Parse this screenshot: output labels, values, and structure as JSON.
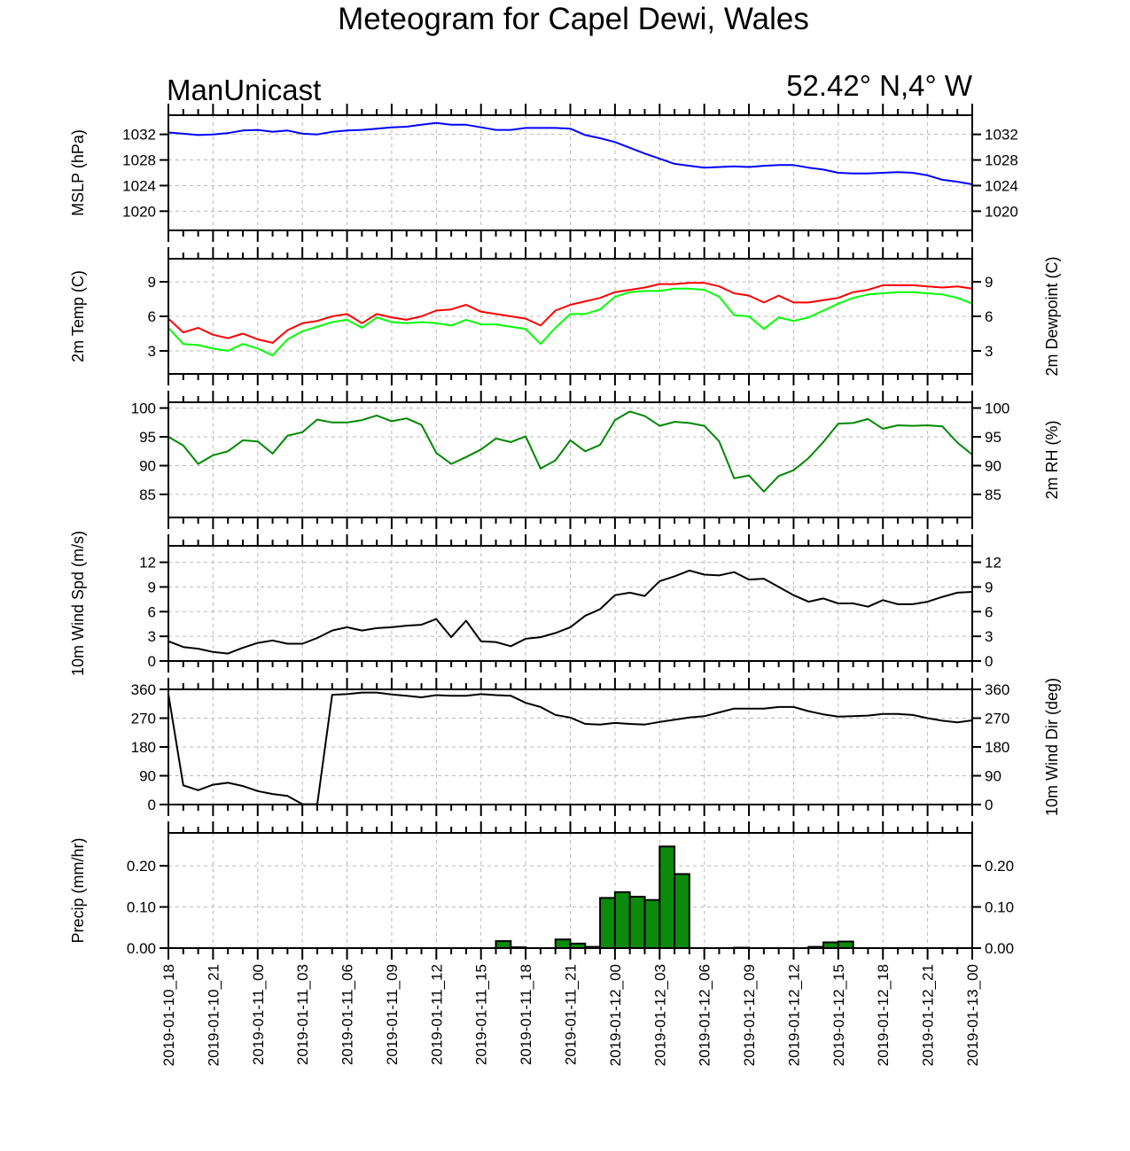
{
  "title": "Meteogram for Capel Dewi, Wales",
  "model": "ManUnicast",
  "location": "52.42° N,4° W",
  "colors": {
    "mslp": "#0000ff",
    "temp": "#ff0000",
    "dewpoint": "#00ff00",
    "rh": "#008800",
    "wind": "#000000",
    "precip_fill": "#0b8a0b",
    "grid": "#b8b8b8"
  },
  "time_labels": [
    "2019-01-10_18",
    "2019-01-10_21",
    "2019-01-11_00",
    "2019-01-11_03",
    "2019-01-11_06",
    "2019-01-11_09",
    "2019-01-11_12",
    "2019-01-11_15",
    "2019-01-11_18",
    "2019-01-11_21",
    "2019-01-12_00",
    "2019-01-12_03",
    "2019-01-12_06",
    "2019-01-12_09",
    "2019-01-12_12",
    "2019-01-12_15",
    "2019-01-12_18",
    "2019-01-12_21",
    "2019-01-13_00"
  ],
  "chart_data": [
    {
      "type": "line",
      "ylabel": "MSLP (hPa)",
      "yticks": [
        1020,
        1024,
        1028,
        1032
      ],
      "ylim": [
        1017,
        1035
      ],
      "grid": true,
      "x": [
        0,
        1,
        2,
        3,
        4,
        5,
        6,
        7,
        8,
        9,
        10,
        11,
        12,
        13,
        14,
        15,
        16,
        17,
        18,
        19,
        20,
        21,
        22,
        23,
        24,
        25,
        26,
        27,
        28,
        29,
        30,
        31,
        32,
        33,
        34,
        35,
        36,
        37,
        38,
        39,
        40,
        41,
        42,
        43,
        44,
        45,
        46,
        47,
        48,
        49,
        50,
        51,
        52,
        53,
        54
      ],
      "series": [
        {
          "name": "MSLP",
          "color_key": "mslp",
          "values": [
            1032.3,
            1032.1,
            1031.9,
            1032.0,
            1032.2,
            1032.6,
            1032.7,
            1032.4,
            1032.6,
            1032.1,
            1032.0,
            1032.4,
            1032.6,
            1032.7,
            1032.9,
            1033.1,
            1033.2,
            1033.5,
            1033.8,
            1033.5,
            1033.5,
            1033.1,
            1032.7,
            1032.7,
            1033.0,
            1033.0,
            1033.0,
            1032.9,
            1031.9,
            1031.4,
            1030.8,
            1029.9,
            1029.0,
            1028.2,
            1027.4,
            1027.1,
            1026.8,
            1026.9,
            1027.0,
            1026.9,
            1027.1,
            1027.2,
            1027.2,
            1026.8,
            1026.5,
            1026.0,
            1025.9,
            1025.9,
            1026.0,
            1026.1,
            1026.0,
            1025.6,
            1024.9,
            1024.6,
            1024.2
          ]
        }
      ],
      "right_labels": true
    },
    {
      "type": "line",
      "ylabel": "2m Temp (C)",
      "ylabel_right": "2m Dewpoint (C)",
      "yticks": [
        3,
        6,
        9
      ],
      "ylim": [
        1,
        11
      ],
      "grid": true,
      "x": [
        0,
        1,
        2,
        3,
        4,
        5,
        6,
        7,
        8,
        9,
        10,
        11,
        12,
        13,
        14,
        15,
        16,
        17,
        18,
        19,
        20,
        21,
        22,
        23,
        24,
        25,
        26,
        27,
        28,
        29,
        30,
        31,
        32,
        33,
        34,
        35,
        36,
        37,
        38,
        39,
        40,
        41,
        42,
        43,
        44,
        45,
        46,
        47,
        48,
        49,
        50,
        51,
        52,
        53,
        54
      ],
      "series": [
        {
          "name": "2m Temp",
          "color_key": "temp",
          "values": [
            5.8,
            4.6,
            5.0,
            4.4,
            4.1,
            4.5,
            4.0,
            3.7,
            4.8,
            5.4,
            5.6,
            6.0,
            6.2,
            5.4,
            6.2,
            5.9,
            5.7,
            6.0,
            6.5,
            6.6,
            7.0,
            6.4,
            6.2,
            6.0,
            5.8,
            5.2,
            6.5,
            7.0,
            7.3,
            7.6,
            8.1,
            8.3,
            8.5,
            8.8,
            8.8,
            8.9,
            8.9,
            8.6,
            8.0,
            7.8,
            7.2,
            7.8,
            7.2,
            7.2,
            7.4,
            7.6,
            8.1,
            8.3,
            8.7,
            8.7,
            8.7,
            8.6,
            8.5,
            8.6,
            8.4
          ]
        },
        {
          "name": "2m Dewpoint",
          "color_key": "dewpoint",
          "values": [
            5.0,
            3.6,
            3.5,
            3.2,
            3.0,
            3.6,
            3.2,
            2.6,
            4.0,
            4.7,
            5.1,
            5.5,
            5.7,
            5.0,
            5.9,
            5.5,
            5.4,
            5.5,
            5.4,
            5.2,
            5.7,
            5.3,
            5.3,
            5.1,
            4.9,
            3.6,
            5.0,
            6.2,
            6.2,
            6.6,
            7.7,
            8.1,
            8.2,
            8.2,
            8.4,
            8.4,
            8.3,
            7.7,
            6.1,
            6.0,
            4.9,
            5.9,
            5.6,
            5.9,
            6.5,
            7.1,
            7.6,
            7.9,
            8.0,
            8.1,
            8.1,
            8.0,
            7.9,
            7.6,
            7.1
          ]
        }
      ],
      "right_labels": true
    },
    {
      "type": "line",
      "ylabel_right": "2m RH (%)",
      "yticks": [
        85,
        90,
        95,
        100
      ],
      "ylim": [
        81,
        101
      ],
      "grid": true,
      "x": [
        0,
        1,
        2,
        3,
        4,
        5,
        6,
        7,
        8,
        9,
        10,
        11,
        12,
        13,
        14,
        15,
        16,
        17,
        18,
        19,
        20,
        21,
        22,
        23,
        24,
        25,
        26,
        27,
        28,
        29,
        30,
        31,
        32,
        33,
        34,
        35,
        36,
        37,
        38,
        39,
        40,
        41,
        42,
        43,
        44,
        45,
        46,
        47,
        48,
        49,
        50,
        51,
        52,
        53,
        54
      ],
      "series": [
        {
          "name": "2m RH",
          "color_key": "rh",
          "values": [
            95.0,
            93.5,
            90.3,
            91.8,
            92.5,
            94.4,
            94.2,
            92.1,
            95.2,
            95.8,
            98.0,
            97.5,
            97.5,
            97.9,
            98.7,
            97.7,
            98.2,
            97.1,
            92.2,
            90.3,
            91.5,
            92.8,
            94.7,
            94.1,
            95.1,
            89.5,
            90.9,
            94.4,
            92.5,
            93.6,
            97.9,
            99.4,
            98.6,
            96.9,
            97.6,
            97.4,
            96.9,
            94.2,
            87.8,
            88.3,
            85.5,
            88.2,
            89.2,
            91.3,
            94.1,
            97.3,
            97.4,
            98.1,
            96.4,
            97.0,
            96.9,
            97.0,
            96.8,
            94.0,
            91.9
          ]
        }
      ],
      "right_labels": true
    },
    {
      "type": "line",
      "ylabel": "10m Wind Spd (m/s)",
      "yticks": [
        0,
        3,
        6,
        9,
        12
      ],
      "ylim": [
        0,
        14
      ],
      "grid": true,
      "x": [
        0,
        1,
        2,
        3,
        4,
        5,
        6,
        7,
        8,
        9,
        10,
        11,
        12,
        13,
        14,
        15,
        16,
        17,
        18,
        19,
        20,
        21,
        22,
        23,
        24,
        25,
        26,
        27,
        28,
        29,
        30,
        31,
        32,
        33,
        34,
        35,
        36,
        37,
        38,
        39,
        40,
        41,
        42,
        43,
        44,
        45,
        46,
        47,
        48,
        49,
        50,
        51,
        52,
        53,
        54
      ],
      "series": [
        {
          "name": "10m Wind Spd",
          "color_key": "wind",
          "values": [
            2.4,
            1.7,
            1.5,
            1.1,
            0.9,
            1.6,
            2.2,
            2.5,
            2.1,
            2.1,
            2.8,
            3.7,
            4.1,
            3.7,
            4.0,
            4.1,
            4.3,
            4.4,
            5.1,
            2.9,
            4.9,
            2.4,
            2.3,
            1.8,
            2.7,
            2.9,
            3.4,
            4.1,
            5.5,
            6.3,
            8.0,
            8.3,
            7.9,
            9.7,
            10.3,
            11.0,
            10.5,
            10.4,
            10.8,
            9.9,
            10.0,
            9.0,
            8.0,
            7.2,
            7.6,
            7.0,
            7.0,
            6.6,
            7.4,
            6.9,
            6.9,
            7.2,
            7.8,
            8.3,
            8.4
          ]
        }
      ],
      "right_labels": true
    },
    {
      "type": "line",
      "ylabel_right": "10m Wind Dir (deg)",
      "yticks": [
        0,
        90,
        180,
        270,
        360
      ],
      "ylim": [
        0,
        360
      ],
      "grid": true,
      "x": [
        0,
        1,
        2,
        3,
        4,
        5,
        6,
        7,
        8,
        9,
        10,
        11,
        12,
        13,
        14,
        15,
        16,
        17,
        18,
        19,
        20,
        21,
        22,
        23,
        24,
        25,
        26,
        27,
        28,
        29,
        30,
        31,
        32,
        33,
        34,
        35,
        36,
        37,
        38,
        39,
        40,
        41,
        42,
        43,
        44,
        45,
        46,
        47,
        48,
        49,
        50,
        51,
        52,
        53,
        54
      ],
      "series": [
        {
          "name": "10m Wind Dir",
          "color_key": "wind",
          "values": [
            345,
            60,
            45,
            62,
            68,
            58,
            42,
            33,
            27,
            1,
            1,
            343,
            345,
            350,
            350,
            344,
            340,
            335,
            342,
            340,
            340,
            345,
            342,
            340,
            318,
            305,
            280,
            272,
            252,
            250,
            255,
            252,
            250,
            258,
            265,
            272,
            276,
            288,
            300,
            300,
            300,
            305,
            305,
            292,
            282,
            275,
            276,
            278,
            283,
            283,
            280,
            270,
            262,
            257,
            263
          ]
        }
      ],
      "right_labels": true
    },
    {
      "type": "bar",
      "ylabel": "Precip (mm/hr)",
      "yticks": [
        0.0,
        0.1,
        0.2
      ],
      "tick_labels": [
        "0.00",
        "0.10",
        "0.20"
      ],
      "ylim": [
        0,
        0.28
      ],
      "grid": true,
      "x": [
        0,
        1,
        2,
        3,
        4,
        5,
        6,
        7,
        8,
        9,
        10,
        11,
        12,
        13,
        14,
        15,
        16,
        17,
        18,
        19,
        20,
        21,
        22,
        23,
        24,
        25,
        26,
        27,
        28,
        29,
        30,
        31,
        32,
        33,
        34,
        35,
        36,
        37,
        38,
        39,
        40,
        41,
        42,
        43,
        44,
        45,
        46,
        47,
        48,
        49,
        50,
        51,
        52,
        53
      ],
      "series": [
        {
          "name": "Precip",
          "color_key": "precip_fill",
          "values": [
            0,
            0,
            0,
            0,
            0,
            0,
            0,
            0,
            0,
            0,
            0,
            0,
            0,
            0,
            0,
            0,
            0,
            0,
            0,
            0,
            0,
            0,
            0.017,
            0.002,
            0,
            0,
            0.021,
            0.011,
            0.003,
            0.122,
            0.136,
            0.125,
            0.117,
            0.247,
            0.18,
            0,
            0,
            0,
            0.001,
            0,
            0,
            0,
            0,
            0.003,
            0.014,
            0.016,
            0,
            0,
            0,
            0,
            0,
            0,
            0,
            0
          ]
        }
      ],
      "right_labels": true
    }
  ]
}
